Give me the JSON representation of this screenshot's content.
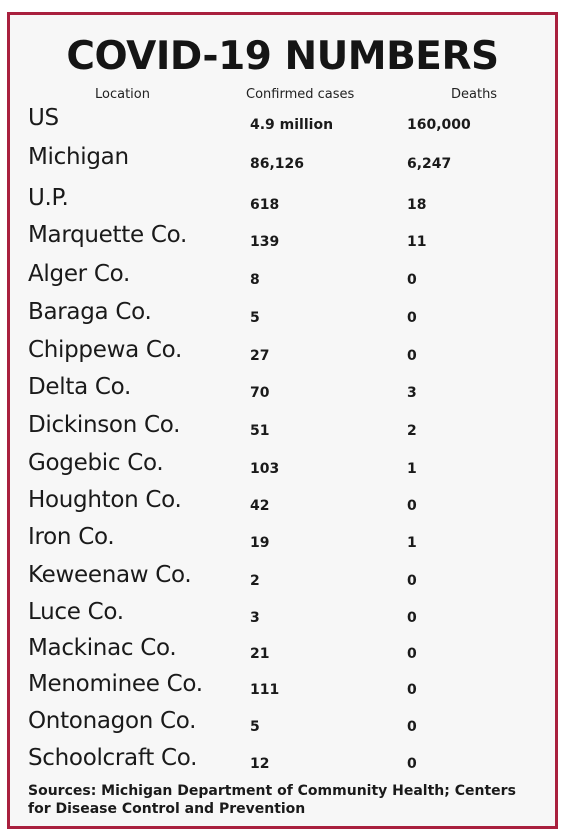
{
  "title": "COVID-19 NUMBERS",
  "headers": {
    "location": "Location",
    "cases": "Confirmed cases",
    "deaths": "Deaths"
  },
  "rows": [
    {
      "location": "US",
      "cases": "4.9 million",
      "deaths": "160,000"
    },
    {
      "location": "Michigan",
      "cases": "86,126",
      "deaths": "6,247"
    },
    {
      "location": "U.P.",
      "cases": "618",
      "deaths": "18"
    },
    {
      "location": "Marquette Co.",
      "cases": "139",
      "deaths": "11"
    },
    {
      "location": "Alger Co.",
      "cases": "8",
      "deaths": "0"
    },
    {
      "location": "Baraga Co.",
      "cases": "5",
      "deaths": "0"
    },
    {
      "location": "Chippewa Co.",
      "cases": "27",
      "deaths": "0"
    },
    {
      "location": "Delta Co.",
      "cases": "70",
      "deaths": "3"
    },
    {
      "location": "Dickinson Co.",
      "cases": "51",
      "deaths": "2"
    },
    {
      "location": "Gogebic Co.",
      "cases": "103",
      "deaths": "1"
    },
    {
      "location": "Houghton Co.",
      "cases": "42",
      "deaths": "0"
    },
    {
      "location": "Iron Co.",
      "cases": "19",
      "deaths": "1"
    },
    {
      "location": "Keweenaw Co.",
      "cases": "2",
      "deaths": "0"
    },
    {
      "location": "Luce Co.",
      "cases": "3",
      "deaths": "0"
    },
    {
      "location": "Mackinac Co.",
      "cases": "21",
      "deaths": "0"
    },
    {
      "location": "Menominee Co.",
      "cases": "111",
      "deaths": "0"
    },
    {
      "location": "Ontonagon Co.",
      "cases": "5",
      "deaths": "0"
    },
    {
      "location": "Schoolcraft Co.",
      "cases": "12",
      "deaths": "0"
    }
  ],
  "sources": "Sources: Michigan Department of Community Health; Centers for Disease Control and Prevention",
  "colors": {
    "border": "#a9203e",
    "background": "#f7f7f7",
    "text": "#1a1a1a"
  }
}
